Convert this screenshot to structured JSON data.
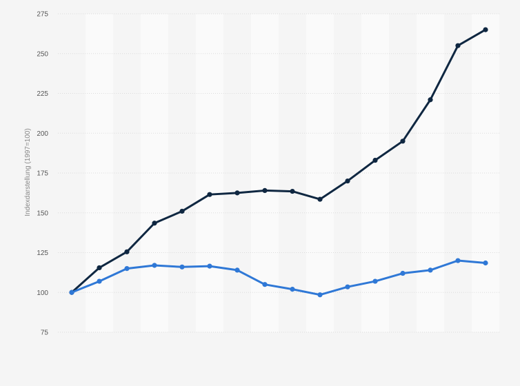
{
  "chart_data": {
    "type": "line",
    "title": "",
    "xlabel": "",
    "ylabel": "Indexdarstellung (1997=100)",
    "ylim": [
      75,
      275
    ],
    "yticks": [
      75,
      100,
      125,
      150,
      175,
      200,
      225,
      250,
      275
    ],
    "x": [
      1,
      2,
      3,
      4,
      5,
      6,
      7,
      8,
      9,
      10,
      11,
      12,
      13,
      14,
      15,
      16
    ],
    "grid": true,
    "legend": "none",
    "series": [
      {
        "color": "#0f2741",
        "values": [
          100,
          115.5,
          125.5,
          143.5,
          151,
          161.5,
          162.5,
          164,
          163.5,
          158.5,
          170,
          183,
          195,
          221,
          255,
          265
        ]
      },
      {
        "color": "#2f78d6",
        "values": [
          100,
          107,
          115,
          117,
          116,
          116.5,
          114,
          105,
          102,
          98.5,
          103.5,
          107,
          112,
          114,
          120,
          118.5
        ]
      }
    ]
  }
}
